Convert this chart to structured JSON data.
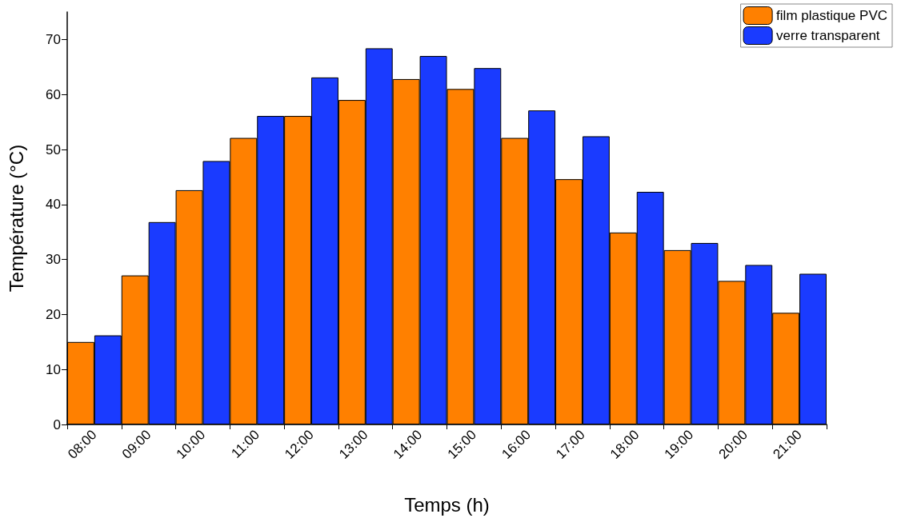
{
  "chart_data": {
    "type": "bar",
    "xlabel": "Temps (h)",
    "ylabel": "Température (°C)",
    "categories": [
      "08:00",
      "09:00",
      "10:00",
      "11:00",
      "12:00",
      "13:00",
      "14:00",
      "15:00",
      "16:00",
      "17:00",
      "18:00",
      "19:00",
      "20:00",
      "21:00"
    ],
    "series": [
      {
        "name": "film plastique PVC",
        "color": "#ff8000",
        "values": [
          15.0,
          27.1,
          42.6,
          52.1,
          56.1,
          59.0,
          62.8,
          61.0,
          52.1,
          44.6,
          34.9,
          31.7,
          26.1,
          20.3
        ]
      },
      {
        "name": "verre transparent",
        "color": "#1a3bff",
        "values": [
          16.2,
          36.8,
          47.9,
          56.1,
          63.1,
          68.4,
          67.0,
          64.8,
          57.1,
          52.4,
          42.3,
          33.0,
          29.0,
          27.4
        ]
      }
    ],
    "ylim": [
      0,
      75
    ],
    "yticks": [
      0,
      10,
      20,
      30,
      40,
      50,
      60,
      70
    ],
    "grid": false,
    "legend": "top right"
  }
}
